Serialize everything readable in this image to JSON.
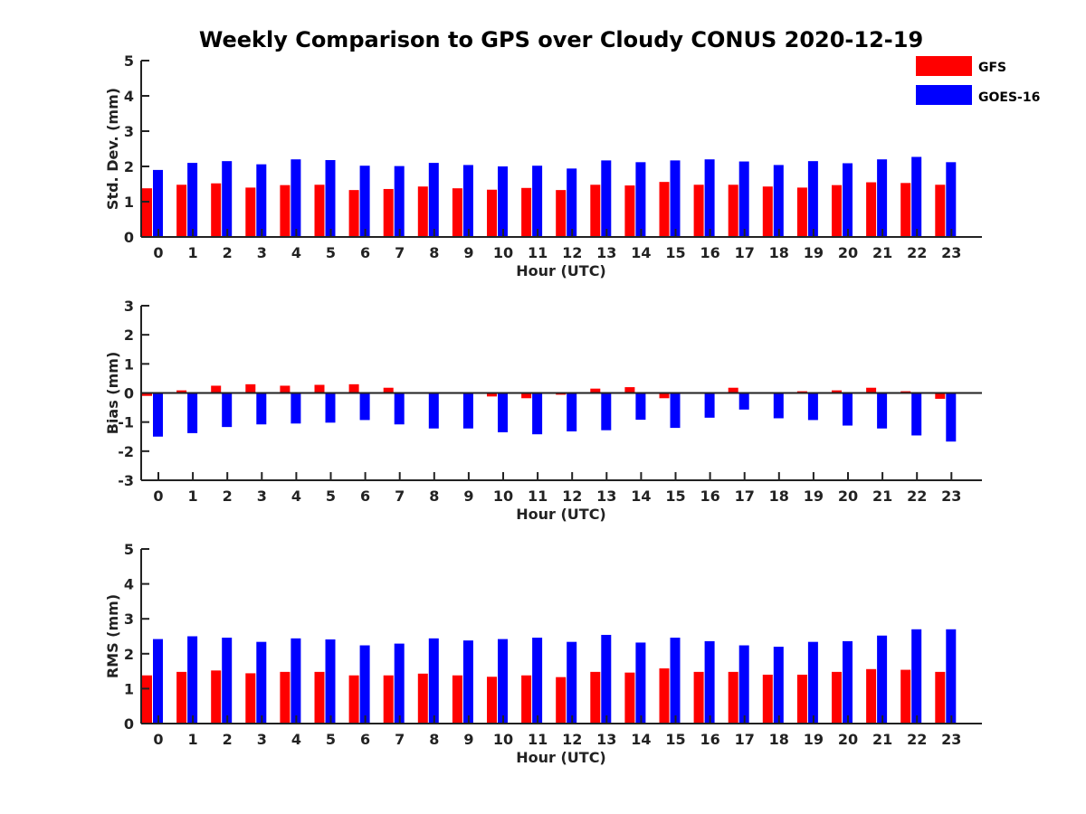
{
  "title": "Weekly Comparison to GPS over Cloudy CONUS 2020-12-19",
  "legend": [
    {
      "name": "GFS",
      "color": "#ff0000"
    },
    {
      "name": "GOES-16",
      "color": "#0000ff"
    }
  ],
  "chart_data": [
    {
      "type": "bar",
      "ylabel": "Std. Dev. (mm)",
      "xlabel": "Hour (UTC)",
      "ylim": [
        0,
        5
      ],
      "yticks": [
        "0",
        "1",
        "2",
        "3",
        "4",
        "5"
      ],
      "categories": [
        "0",
        "1",
        "2",
        "3",
        "4",
        "5",
        "6",
        "7",
        "8",
        "9",
        "10",
        "11",
        "12",
        "13",
        "14",
        "15",
        "16",
        "17",
        "18",
        "19",
        "20",
        "21",
        "22",
        "23"
      ],
      "series": [
        {
          "name": "GFS",
          "color": "#ff0000",
          "values": [
            1.38,
            1.48,
            1.52,
            1.4,
            1.47,
            1.48,
            1.33,
            1.36,
            1.43,
            1.38,
            1.34,
            1.39,
            1.33,
            1.48,
            1.46,
            1.56,
            1.48,
            1.48,
            1.43,
            1.4,
            1.47,
            1.55,
            1.53,
            1.48
          ]
        },
        {
          "name": "GOES-16",
          "color": "#0000ff",
          "values": [
            1.9,
            2.1,
            2.15,
            2.06,
            2.2,
            2.18,
            2.02,
            2.01,
            2.1,
            2.04,
            2.0,
            2.02,
            1.94,
            2.17,
            2.12,
            2.17,
            2.2,
            2.14,
            2.04,
            2.15,
            2.09,
            2.2,
            2.27,
            2.12
          ]
        }
      ]
    },
    {
      "type": "bar",
      "ylabel": "Bias (mm)",
      "xlabel": "Hour (UTC)",
      "ylim": [
        -3,
        3
      ],
      "yticks": [
        "-3",
        "-2",
        "-1",
        "0",
        "1",
        "2",
        "3"
      ],
      "categories": [
        "0",
        "1",
        "2",
        "3",
        "4",
        "5",
        "6",
        "7",
        "8",
        "9",
        "10",
        "11",
        "12",
        "13",
        "14",
        "15",
        "16",
        "17",
        "18",
        "19",
        "20",
        "21",
        "22",
        "23"
      ],
      "series": [
        {
          "name": "GFS",
          "color": "#ff0000",
          "values": [
            -0.1,
            0.09,
            0.25,
            0.3,
            0.25,
            0.28,
            0.3,
            0.18,
            -0.02,
            0.02,
            -0.12,
            -0.18,
            -0.06,
            0.15,
            0.2,
            -0.18,
            0.02,
            0.18,
            -0.02,
            0.06,
            0.09,
            0.18,
            0.06,
            -0.2
          ]
        },
        {
          "name": "GOES-16",
          "color": "#0000ff",
          "values": [
            -1.5,
            -1.38,
            -1.17,
            -1.08,
            -1.05,
            -1.02,
            -0.93,
            -1.08,
            -1.22,
            -1.22,
            -1.35,
            -1.42,
            -1.32,
            -1.28,
            -0.92,
            -1.2,
            -0.85,
            -0.57,
            -0.87,
            -0.93,
            -1.12,
            -1.22,
            -1.46,
            -1.67
          ]
        }
      ]
    },
    {
      "type": "bar",
      "ylabel": "RMS (mm)",
      "xlabel": "Hour (UTC)",
      "ylim": [
        0,
        5
      ],
      "yticks": [
        "0",
        "1",
        "2",
        "3",
        "4",
        "5"
      ],
      "categories": [
        "0",
        "1",
        "2",
        "3",
        "4",
        "5",
        "6",
        "7",
        "8",
        "9",
        "10",
        "11",
        "12",
        "13",
        "14",
        "15",
        "16",
        "17",
        "18",
        "19",
        "20",
        "21",
        "22",
        "23"
      ],
      "series": [
        {
          "name": "GFS",
          "color": "#ff0000",
          "values": [
            1.38,
            1.48,
            1.52,
            1.44,
            1.48,
            1.48,
            1.38,
            1.38,
            1.43,
            1.38,
            1.34,
            1.38,
            1.33,
            1.48,
            1.46,
            1.58,
            1.48,
            1.48,
            1.4,
            1.4,
            1.48,
            1.56,
            1.54,
            1.48
          ]
        },
        {
          "name": "GOES-16",
          "color": "#0000ff",
          "values": [
            2.42,
            2.5,
            2.46,
            2.34,
            2.44,
            2.41,
            2.24,
            2.29,
            2.44,
            2.38,
            2.42,
            2.46,
            2.34,
            2.54,
            2.32,
            2.46,
            2.36,
            2.24,
            2.2,
            2.34,
            2.36,
            2.52,
            2.7,
            2.7
          ]
        }
      ]
    }
  ]
}
